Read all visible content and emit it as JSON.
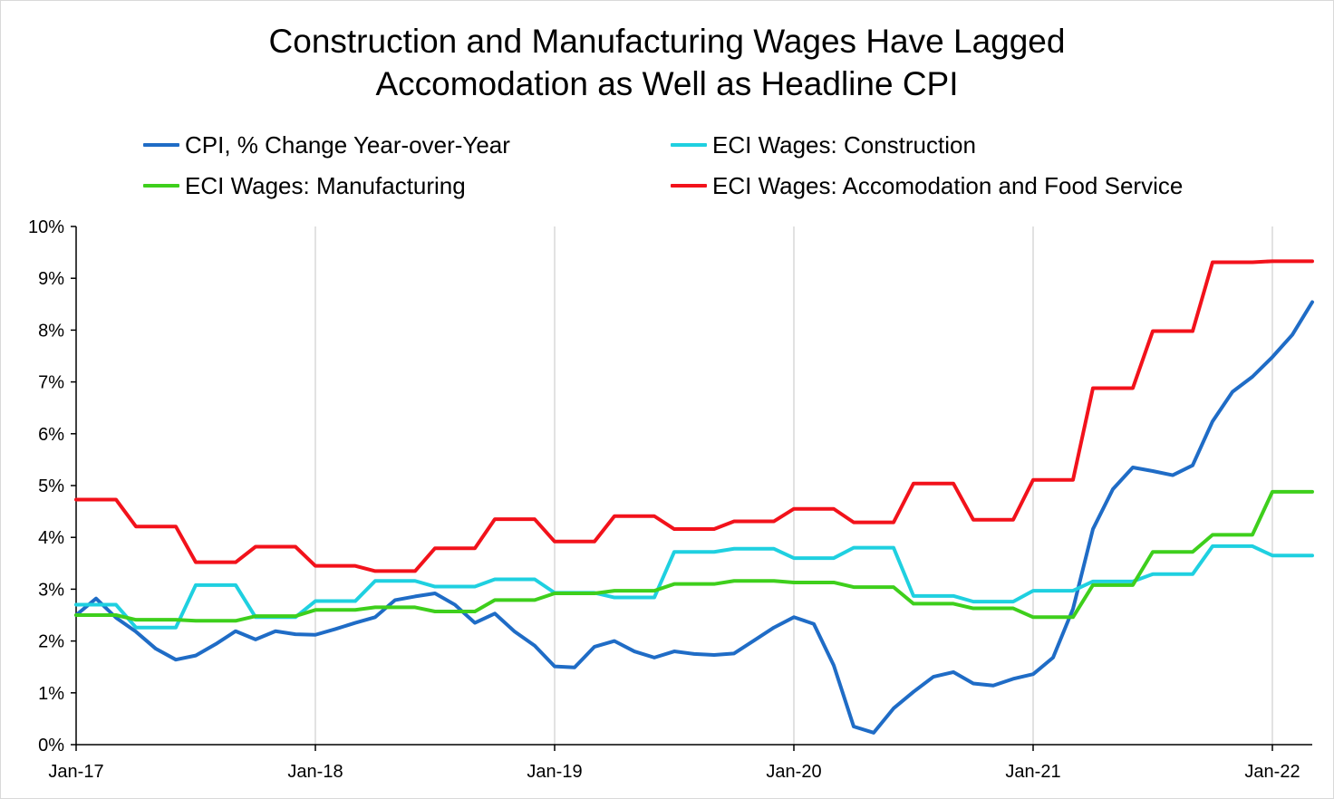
{
  "chart_data": {
    "type": "line",
    "title_line1": "Construction and Manufacturing Wages Have Lagged",
    "title_line2": "Accomodation as Well as Headline CPI",
    "xlabel": "",
    "ylabel": "",
    "ylim": [
      0,
      10
    ],
    "yticks": [
      0,
      1,
      2,
      3,
      4,
      5,
      6,
      7,
      8,
      9,
      10
    ],
    "ytick_labels": [
      "0%",
      "1%",
      "2%",
      "3%",
      "4%",
      "5%",
      "6%",
      "7%",
      "8%",
      "9%",
      "10%"
    ],
    "x_start": "Jan-17",
    "x_months": 63,
    "xtick_labels": [
      "Jan-17",
      "Jan-18",
      "Jan-19",
      "Jan-20",
      "Jan-21",
      "Jan-22"
    ],
    "xtick_month_index": [
      0,
      12,
      24,
      36,
      48,
      60
    ],
    "grid": "vertical lines at January of each year",
    "legend_position": "top, two columns",
    "series": [
      {
        "name": "CPI, % Change Year-over-Year",
        "color": "#1f6cc6",
        "values": [
          2.5,
          2.82,
          2.45,
          2.18,
          1.85,
          1.64,
          1.72,
          1.94,
          2.19,
          2.03,
          2.19,
          2.13,
          2.12,
          2.23,
          2.35,
          2.46,
          2.79,
          2.86,
          2.92,
          2.7,
          2.35,
          2.53,
          2.18,
          1.91,
          1.51,
          1.49,
          1.89,
          2.0,
          1.8,
          1.68,
          1.8,
          1.75,
          1.73,
          1.76,
          2.01,
          2.26,
          2.46,
          2.33,
          1.53,
          0.35,
          0.23,
          0.7,
          1.02,
          1.31,
          1.4,
          1.18,
          1.14,
          1.27,
          1.36,
          1.68,
          2.62,
          4.16,
          4.93,
          5.35,
          5.28,
          5.2,
          5.39,
          6.24,
          6.81,
          7.1,
          7.48,
          7.91,
          8.54
        ]
      },
      {
        "name": "ECI Wages: Construction",
        "color": "#1fd0e0",
        "values": [
          2.7,
          2.7,
          2.7,
          2.26,
          2.26,
          2.26,
          3.08,
          3.08,
          3.08,
          2.46,
          2.46,
          2.46,
          2.77,
          2.77,
          2.77,
          3.16,
          3.16,
          3.16,
          3.05,
          3.05,
          3.05,
          3.19,
          3.19,
          3.19,
          2.93,
          2.93,
          2.93,
          2.84,
          2.84,
          2.84,
          3.72,
          3.72,
          3.72,
          3.78,
          3.78,
          3.78,
          3.6,
          3.6,
          3.6,
          3.8,
          3.8,
          3.8,
          2.87,
          2.87,
          2.87,
          2.76,
          2.76,
          2.76,
          2.97,
          2.97,
          2.97,
          3.15,
          3.15,
          3.15,
          3.29,
          3.29,
          3.29,
          3.83,
          3.83,
          3.83,
          3.65,
          3.65,
          3.65
        ]
      },
      {
        "name": "ECI Wages: Manufacturing",
        "color": "#3ecf1c",
        "values": [
          2.5,
          2.5,
          2.5,
          2.41,
          2.41,
          2.41,
          2.39,
          2.39,
          2.39,
          2.48,
          2.48,
          2.48,
          2.6,
          2.6,
          2.6,
          2.65,
          2.65,
          2.65,
          2.57,
          2.57,
          2.57,
          2.79,
          2.79,
          2.79,
          2.92,
          2.92,
          2.92,
          2.97,
          2.97,
          2.97,
          3.1,
          3.1,
          3.1,
          3.16,
          3.16,
          3.16,
          3.13,
          3.13,
          3.13,
          3.04,
          3.04,
          3.04,
          2.72,
          2.72,
          2.72,
          2.63,
          2.63,
          2.63,
          2.46,
          2.46,
          2.46,
          3.08,
          3.08,
          3.08,
          3.72,
          3.72,
          3.72,
          4.05,
          4.05,
          4.05,
          4.88,
          4.88,
          4.88
        ]
      },
      {
        "name": "ECI Wages: Accomodation and Food Service",
        "color": "#f2121b",
        "values": [
          4.73,
          4.73,
          4.73,
          4.21,
          4.21,
          4.21,
          3.52,
          3.52,
          3.52,
          3.82,
          3.82,
          3.82,
          3.45,
          3.45,
          3.45,
          3.35,
          3.35,
          3.35,
          3.79,
          3.79,
          3.79,
          4.35,
          4.35,
          4.35,
          3.92,
          3.92,
          3.92,
          4.41,
          4.41,
          4.41,
          4.16,
          4.16,
          4.16,
          4.31,
          4.31,
          4.31,
          4.55,
          4.55,
          4.55,
          4.29,
          4.29,
          4.29,
          5.04,
          5.04,
          5.04,
          4.34,
          4.34,
          4.34,
          5.11,
          5.11,
          5.11,
          6.88,
          6.88,
          6.88,
          7.98,
          7.98,
          7.98,
          9.31,
          9.31,
          9.31,
          9.33,
          9.33,
          9.33
        ]
      }
    ]
  }
}
